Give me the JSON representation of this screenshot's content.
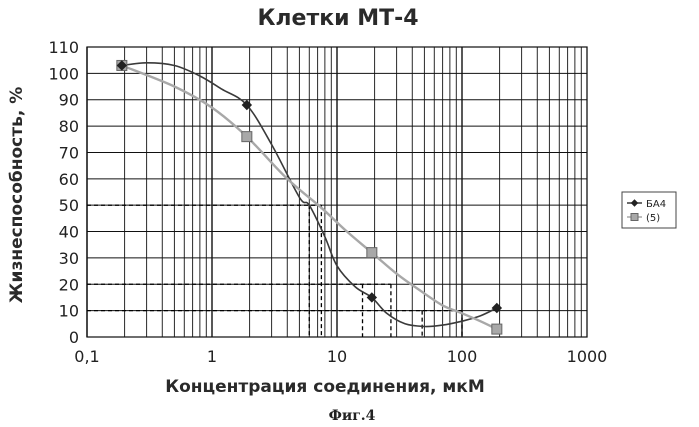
{
  "chart_data": {
    "type": "line",
    "title": "Клетки МТ-4",
    "xlabel": "Концентрация соединения, мкМ",
    "ylabel": "Жизнеспособность, %",
    "x_scale": "log",
    "xlim": [
      0.1,
      1000
    ],
    "ylim": [
      0,
      110
    ],
    "x_ticks": [
      "0,1",
      "1",
      "10",
      "100",
      "1000"
    ],
    "y_ticks": [
      "0",
      "10",
      "20",
      "30",
      "40",
      "50",
      "60",
      "70",
      "80",
      "90",
      "100",
      "110"
    ],
    "grid": true,
    "legend_position": "right",
    "series": [
      {
        "name": "БА4",
        "color": "#3a3a3a",
        "marker": "diamond",
        "points": [
          {
            "x": 0.19,
            "y": 103
          },
          {
            "x": 1.9,
            "y": 88
          },
          {
            "x": 19,
            "y": 15
          },
          {
            "x": 190,
            "y": 11
          }
        ],
        "curve": [
          [
            0.19,
            103
          ],
          [
            0.3,
            104
          ],
          [
            0.5,
            103
          ],
          [
            0.8,
            99
          ],
          [
            1.2,
            94
          ],
          [
            1.9,
            88
          ],
          [
            3,
            73
          ],
          [
            5,
            53
          ],
          [
            6,
            50
          ],
          [
            8,
            38
          ],
          [
            10,
            27
          ],
          [
            14,
            19
          ],
          [
            19,
            15
          ],
          [
            25,
            9
          ],
          [
            35,
            5
          ],
          [
            50,
            4
          ],
          [
            70,
            4.5
          ],
          [
            100,
            6
          ],
          [
            140,
            8
          ],
          [
            190,
            11
          ]
        ]
      },
      {
        "name": "(5)",
        "color": "#a8a8a8",
        "marker": "square",
        "points": [
          {
            "x": 0.19,
            "y": 103
          },
          {
            "x": 1.9,
            "y": 76
          },
          {
            "x": 19,
            "y": 32
          },
          {
            "x": 190,
            "y": 3
          }
        ],
        "curve": [
          [
            0.19,
            103
          ],
          [
            0.5,
            95
          ],
          [
            1,
            87
          ],
          [
            1.9,
            76
          ],
          [
            4,
            60
          ],
          [
            7.5,
            49
          ],
          [
            12,
            40
          ],
          [
            19,
            32
          ],
          [
            30,
            24
          ],
          [
            45,
            18
          ],
          [
            70,
            12
          ],
          [
            100,
            9
          ],
          [
            140,
            6
          ],
          [
            190,
            3
          ]
        ]
      }
    ],
    "annotations": [
      {
        "y": 50,
        "x_values": [
          6,
          7.5
        ]
      },
      {
        "y": 20,
        "x_values": [
          16,
          27
        ]
      },
      {
        "y": 10,
        "x_values": [
          48,
          100
        ]
      }
    ]
  },
  "caption": "Фиг.4"
}
